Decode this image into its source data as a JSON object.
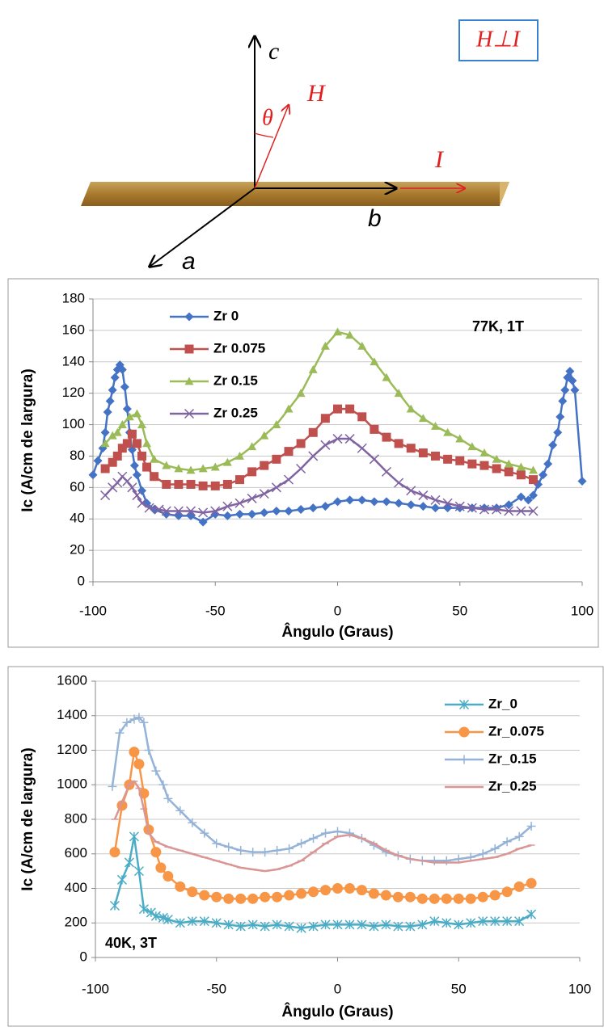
{
  "diagram": {
    "axis_c": "c",
    "angle": "θ",
    "field": "H",
    "current": "I",
    "axis_b": "b",
    "axis_a": "a",
    "condition": "H⊥I"
  },
  "chart_data": [
    {
      "type": "line",
      "xlabel": "Ângulo (Graus)",
      "ylabel": "Ic (A/cm de largura)",
      "annotation": "77K, 1T",
      "xlim": [
        -100,
        100
      ],
      "ylim": [
        0,
        180
      ],
      "xticks": [
        -100,
        -50,
        0,
        50,
        100
      ],
      "yticks": [
        0,
        20,
        40,
        60,
        80,
        100,
        120,
        140,
        160,
        180
      ],
      "grid": true,
      "legend": "upper left",
      "series": [
        {
          "name": "Zr 0",
          "color": "#4472c4",
          "marker": "diamond",
          "x": [
            -100,
            -98,
            -96,
            -95,
            -94,
            -93,
            -92,
            -91,
            -90,
            -89,
            -88,
            -87,
            -86,
            -85,
            -84,
            -83,
            -82,
            -80,
            -78,
            -75,
            -70,
            -65,
            -60,
            -55,
            -50,
            -45,
            -40,
            -35,
            -30,
            -25,
            -20,
            -15,
            -10,
            -5,
            0,
            5,
            10,
            15,
            20,
            25,
            30,
            35,
            40,
            45,
            50,
            55,
            60,
            65,
            70,
            75,
            78,
            80,
            82,
            84,
            86,
            88,
            90,
            91,
            92,
            93,
            94,
            95,
            96,
            97,
            100
          ],
          "values": [
            68,
            77,
            85,
            95,
            108,
            115,
            122,
            130,
            135,
            138,
            135,
            124,
            110,
            95,
            84,
            74,
            68,
            58,
            50,
            46,
            43,
            42,
            42,
            38,
            43,
            42,
            43,
            43,
            44,
            45,
            45,
            46,
            47,
            48,
            51,
            52,
            52,
            51,
            51,
            50,
            49,
            48,
            47,
            47,
            47,
            47,
            47,
            47,
            49,
            54,
            52,
            55,
            62,
            68,
            75,
            87,
            95,
            105,
            115,
            122,
            130,
            134,
            128,
            122,
            64
          ]
        },
        {
          "name": "Zr 0.075",
          "color": "#c0504d",
          "marker": "square",
          "x": [
            -95,
            -92,
            -90,
            -88,
            -86,
            -84,
            -82,
            -80,
            -78,
            -75,
            -70,
            -65,
            -60,
            -55,
            -50,
            -45,
            -40,
            -35,
            -30,
            -25,
            -20,
            -15,
            -10,
            -5,
            0,
            5,
            10,
            15,
            20,
            25,
            30,
            35,
            40,
            45,
            50,
            55,
            60,
            65,
            70,
            75,
            80
          ],
          "values": [
            72,
            76,
            80,
            85,
            88,
            94,
            88,
            80,
            73,
            67,
            62,
            62,
            62,
            61,
            61,
            62,
            65,
            70,
            74,
            78,
            83,
            88,
            95,
            104,
            110,
            110,
            105,
            97,
            92,
            88,
            85,
            82,
            80,
            78,
            77,
            75,
            74,
            72,
            70,
            68,
            65
          ]
        },
        {
          "name": "Zr 0.15",
          "color": "#9bbb59",
          "marker": "triangle",
          "x": [
            -95,
            -92,
            -90,
            -88,
            -85,
            -82,
            -80,
            -78,
            -75,
            -70,
            -65,
            -60,
            -55,
            -50,
            -45,
            -40,
            -35,
            -30,
            -25,
            -20,
            -15,
            -10,
            -5,
            0,
            5,
            10,
            15,
            20,
            25,
            30,
            35,
            40,
            45,
            50,
            55,
            60,
            65,
            70,
            75,
            80
          ],
          "values": [
            88,
            93,
            95,
            100,
            105,
            107,
            100,
            88,
            78,
            74,
            72,
            71,
            72,
            73,
            76,
            80,
            86,
            93,
            100,
            110,
            120,
            135,
            150,
            159,
            157,
            150,
            140,
            130,
            120,
            110,
            104,
            99,
            95,
            91,
            86,
            82,
            78,
            75,
            73,
            71
          ]
        },
        {
          "name": "Zr 0.25",
          "color": "#8064a2",
          "marker": "x",
          "x": [
            -95,
            -92,
            -90,
            -88,
            -86,
            -84,
            -82,
            -80,
            -77,
            -73,
            -70,
            -65,
            -60,
            -55,
            -50,
            -45,
            -40,
            -35,
            -30,
            -25,
            -20,
            -15,
            -10,
            -5,
            0,
            5,
            10,
            15,
            20,
            25,
            30,
            35,
            40,
            45,
            50,
            55,
            60,
            65,
            70,
            75,
            80
          ],
          "values": [
            55,
            60,
            63,
            67,
            64,
            60,
            55,
            50,
            47,
            46,
            45,
            45,
            45,
            44,
            45,
            48,
            50,
            53,
            56,
            60,
            65,
            72,
            80,
            87,
            91,
            91,
            85,
            78,
            70,
            63,
            58,
            55,
            52,
            50,
            48,
            47,
            46,
            46,
            45,
            45,
            45
          ]
        }
      ]
    },
    {
      "type": "line",
      "xlabel": "Ângulo (Graus)",
      "ylabel": "Ic (A/cm de largura)",
      "annotation": "40K, 3T",
      "xlim": [
        -100,
        100
      ],
      "ylim": [
        0,
        1600
      ],
      "xticks": [
        -100,
        -50,
        0,
        50,
        100
      ],
      "yticks": [
        0,
        200,
        400,
        600,
        800,
        1000,
        1200,
        1400,
        1600
      ],
      "grid": true,
      "legend": "upper right",
      "series": [
        {
          "name": "Zr_0",
          "color": "#4bacc6",
          "marker": "asterisk",
          "x": [
            -92,
            -89,
            -86,
            -84,
            -82,
            -80,
            -77,
            -75,
            -72,
            -70,
            -65,
            -60,
            -55,
            -50,
            -45,
            -40,
            -35,
            -30,
            -25,
            -20,
            -15,
            -10,
            -5,
            0,
            5,
            10,
            15,
            20,
            25,
            30,
            35,
            40,
            45,
            50,
            55,
            60,
            65,
            70,
            75,
            80
          ],
          "values": [
            300,
            450,
            550,
            700,
            500,
            280,
            260,
            240,
            230,
            220,
            200,
            210,
            210,
            200,
            190,
            180,
            190,
            180,
            190,
            180,
            170,
            180,
            190,
            190,
            190,
            190,
            180,
            190,
            180,
            180,
            190,
            210,
            200,
            190,
            200,
            210,
            210,
            210,
            210,
            250
          ]
        },
        {
          "name": "Zr_0.075",
          "color": "#f79646",
          "marker": "circle",
          "x": [
            -92,
            -89,
            -86,
            -84,
            -82,
            -80,
            -78,
            -75,
            -73,
            -70,
            -65,
            -60,
            -55,
            -50,
            -45,
            -40,
            -35,
            -30,
            -25,
            -20,
            -15,
            -10,
            -5,
            0,
            5,
            10,
            15,
            20,
            25,
            30,
            35,
            40,
            45,
            50,
            55,
            60,
            65,
            70,
            75,
            80
          ],
          "values": [
            610,
            880,
            1000,
            1190,
            1120,
            950,
            740,
            610,
            520,
            470,
            410,
            380,
            360,
            350,
            340,
            340,
            340,
            350,
            350,
            360,
            370,
            380,
            390,
            400,
            400,
            390,
            370,
            360,
            350,
            350,
            340,
            340,
            340,
            340,
            340,
            350,
            360,
            380,
            410,
            430
          ]
        },
        {
          "name": "Zr_0.15",
          "color": "#95b3d7",
          "marker": "plus",
          "x": [
            -93,
            -90,
            -87,
            -84,
            -82,
            -80,
            -78,
            -75,
            -72,
            -70,
            -65,
            -60,
            -55,
            -50,
            -45,
            -40,
            -35,
            -30,
            -25,
            -20,
            -15,
            -10,
            -5,
            0,
            5,
            10,
            15,
            20,
            25,
            30,
            35,
            40,
            45,
            50,
            55,
            60,
            65,
            70,
            75,
            80
          ],
          "values": [
            990,
            1300,
            1360,
            1380,
            1390,
            1360,
            1200,
            1080,
            1000,
            920,
            850,
            780,
            720,
            660,
            640,
            620,
            610,
            610,
            620,
            630,
            660,
            690,
            720,
            730,
            720,
            690,
            650,
            610,
            590,
            570,
            560,
            560,
            560,
            570,
            580,
            600,
            630,
            670,
            700,
            760
          ]
        },
        {
          "name": "Zr_0.25",
          "color": "#d99694",
          "marker": "none",
          "x": [
            -92,
            -89,
            -86,
            -84,
            -82,
            -80,
            -78,
            -75,
            -70,
            -65,
            -60,
            -55,
            -50,
            -45,
            -40,
            -35,
            -30,
            -25,
            -20,
            -15,
            -10,
            -5,
            0,
            5,
            10,
            15,
            20,
            25,
            30,
            35,
            40,
            45,
            50,
            55,
            60,
            65,
            70,
            75,
            80
          ],
          "values": [
            800,
            900,
            1000,
            1020,
            980,
            860,
            720,
            670,
            640,
            620,
            600,
            580,
            560,
            540,
            520,
            510,
            500,
            510,
            530,
            560,
            610,
            660,
            700,
            710,
            690,
            660,
            620,
            590,
            570,
            560,
            550,
            550,
            550,
            560,
            570,
            580,
            600,
            630,
            650
          ]
        }
      ]
    }
  ]
}
